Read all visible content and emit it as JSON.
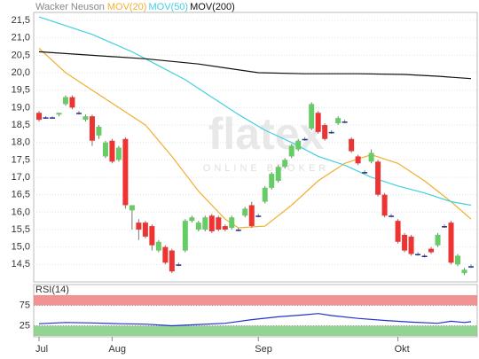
{
  "chart_data": [
    {
      "type": "candlestick",
      "title": "Wacker Neuson",
      "watermark": "flatex",
      "watermark_sub": "ONLINE BROKER",
      "categories": [
        "Jul",
        null,
        null,
        null,
        null,
        null,
        null,
        null,
        null,
        null,
        null,
        "Aug",
        null,
        null,
        null,
        null,
        null,
        null,
        null,
        null,
        null,
        null,
        null,
        null,
        null,
        null,
        null,
        null,
        null,
        null,
        null,
        null,
        null,
        "Sep",
        null,
        null,
        null,
        null,
        null,
        null,
        null,
        null,
        null,
        null,
        null,
        null,
        null,
        null,
        null,
        null,
        null,
        null,
        null,
        null,
        "Okt",
        null,
        null,
        null,
        null,
        null,
        null,
        null,
        null,
        null,
        null,
        null
      ],
      "open": [
        18.85,
        18.72,
        18.72,
        18.8,
        19.1,
        19.3,
        18.85,
        18.65,
        18.75,
        18.2,
        17.6,
        18.05,
        17.5,
        18.1,
        16.05,
        15.7,
        15.7,
        15.6,
        14.9,
        15.0,
        14.9,
        14.5,
        14.9,
        15.75,
        15.5,
        15.5,
        15.9,
        15.85,
        15.6,
        15.55,
        15.5,
        15.9,
        16.2,
        15.9,
        16.3,
        16.7,
        16.9,
        17.3,
        17.6,
        17.8,
        18.1,
        18.4,
        18.85,
        18.5,
        18.3,
        18.55,
        18.6,
        18.1,
        17.6,
        17.15,
        17.45,
        17.45,
        16.5,
        15.9,
        15.75,
        15.35,
        15.3,
        14.8,
        14.75,
        14.95,
        15.05,
        15.6,
        15.7,
        14.5,
        14.25,
        14.45
      ],
      "high": [
        18.9,
        18.75,
        18.75,
        18.85,
        19.35,
        19.35,
        18.9,
        18.8,
        18.8,
        18.5,
        18.05,
        18.1,
        17.9,
        18.15,
        16.2,
        15.8,
        15.75,
        15.65,
        15.2,
        15.05,
        14.95,
        14.55,
        15.8,
        15.9,
        15.75,
        15.9,
        15.95,
        15.9,
        15.65,
        15.9,
        15.55,
        16.15,
        16.3,
        15.95,
        16.75,
        17.15,
        17.35,
        17.55,
        17.95,
        18.1,
        18.15,
        19.15,
        18.9,
        18.55,
        18.35,
        18.75,
        18.65,
        18.15,
        17.65,
        17.2,
        17.8,
        17.5,
        16.55,
        15.95,
        15.8,
        15.4,
        15.35,
        14.85,
        14.8,
        15.0,
        15.4,
        15.65,
        15.75,
        14.8,
        14.4,
        14.5
      ],
      "low": [
        18.6,
        18.68,
        18.68,
        18.75,
        19.05,
        18.95,
        18.8,
        18.6,
        17.9,
        18.1,
        17.55,
        17.4,
        17.45,
        16.1,
        15.5,
        15.2,
        15.25,
        14.9,
        14.85,
        14.5,
        14.25,
        14.45,
        14.85,
        15.7,
        15.45,
        15.45,
        15.4,
        15.45,
        15.45,
        15.5,
        15.45,
        15.85,
        15.55,
        15.85,
        16.25,
        16.65,
        16.85,
        17.25,
        17.55,
        17.75,
        18.05,
        18.35,
        18.25,
        18.05,
        18.25,
        18.5,
        18.55,
        17.7,
        17.35,
        17.1,
        17.4,
        16.45,
        15.85,
        15.85,
        15.1,
        14.85,
        14.75,
        14.75,
        14.7,
        14.8,
        15.0,
        15.55,
        14.5,
        14.45,
        14.2,
        14.4
      ],
      "close": [
        18.65,
        18.72,
        18.72,
        18.85,
        19.3,
        19.0,
        18.85,
        18.75,
        18.05,
        18.45,
        18.0,
        17.45,
        17.85,
        16.2,
        16.2,
        15.5,
        15.3,
        15.05,
        15.15,
        14.55,
        14.3,
        14.5,
        15.75,
        15.85,
        15.7,
        15.85,
        15.45,
        15.5,
        15.5,
        15.85,
        15.5,
        16.1,
        15.6,
        15.9,
        16.7,
        17.1,
        17.3,
        17.5,
        17.9,
        18.05,
        18.1,
        19.1,
        18.3,
        18.1,
        18.3,
        18.7,
        18.6,
        17.75,
        17.4,
        17.15,
        17.7,
        16.5,
        15.9,
        15.9,
        15.15,
        14.9,
        14.8,
        14.8,
        14.75,
        14.85,
        15.35,
        15.6,
        14.55,
        14.75,
        14.35,
        14.45
      ],
      "up_color": "#66cc66",
      "down_color": "#ee3333",
      "series": [
        {
          "name": "MOV(20)",
          "color": "#f0b030",
          "x": [
            0,
            4,
            8,
            12,
            16,
            20,
            24,
            28,
            30,
            34,
            38,
            42,
            46,
            50,
            54,
            58,
            62,
            65
          ],
          "values": [
            20.7,
            20.0,
            19.5,
            19.0,
            18.5,
            17.6,
            16.6,
            15.8,
            15.55,
            15.6,
            16.2,
            16.9,
            17.4,
            17.65,
            17.4,
            16.9,
            16.3,
            15.8
          ]
        },
        {
          "name": "MOV(50)",
          "color": "#40d0e0",
          "x": [
            0,
            4,
            8,
            14,
            18,
            22,
            26,
            30,
            34,
            38,
            42,
            46,
            50,
            54,
            58,
            62,
            65
          ],
          "values": [
            21.6,
            21.35,
            21.1,
            20.6,
            20.2,
            19.8,
            19.3,
            18.8,
            18.35,
            18.0,
            17.6,
            17.35,
            17.0,
            16.75,
            16.55,
            16.3,
            16.2
          ]
        },
        {
          "name": "MOV(200)",
          "color": "#111111",
          "x": [
            0,
            8,
            16,
            24,
            33,
            40,
            48,
            55,
            60,
            65
          ],
          "values": [
            20.6,
            20.5,
            20.4,
            20.25,
            20.0,
            19.97,
            19.97,
            19.95,
            19.9,
            19.83
          ]
        }
      ],
      "ylim": [
        14.0,
        21.73
      ],
      "yticks": [
        {
          "value": 14.5,
          "label": "14,5"
        },
        {
          "value": 15.0,
          "label": "15,0"
        },
        {
          "value": 15.5,
          "label": "15,5"
        },
        {
          "value": 16.0,
          "label": "16,0"
        },
        {
          "value": 16.5,
          "label": "16,5"
        },
        {
          "value": 17.0,
          "label": "17,0"
        },
        {
          "value": 17.5,
          "label": "17,5"
        },
        {
          "value": 18.0,
          "label": "18,0"
        },
        {
          "value": 18.5,
          "label": "18,5"
        },
        {
          "value": 19.0,
          "label": "19,0"
        },
        {
          "value": 19.5,
          "label": "19,5"
        },
        {
          "value": 20.0,
          "label": "20,0"
        },
        {
          "value": 20.5,
          "label": "20,5"
        },
        {
          "value": 21.0,
          "label": "21,0"
        },
        {
          "value": 21.5,
          "label": "21,5"
        }
      ]
    },
    {
      "type": "line",
      "title": "RSI(14)",
      "series": [
        {
          "name": "RSI(14)",
          "color": "#2233cc",
          "x": [
            0,
            4,
            8,
            12,
            16,
            20,
            24,
            28,
            32,
            36,
            40,
            42,
            44,
            48,
            52,
            56,
            60,
            62,
            64,
            65
          ],
          "values": [
            30,
            33,
            32,
            30,
            29,
            25,
            28,
            31,
            40,
            47,
            52,
            55,
            50,
            43,
            38,
            34,
            31,
            36,
            33,
            35
          ]
        }
      ],
      "bands": [
        {
          "from": 75,
          "to": 100,
          "color": "#f08080"
        },
        {
          "from": 0,
          "to": 25,
          "color": "#80cc80"
        }
      ],
      "ylim": [
        0,
        100
      ],
      "yticks": [
        25,
        75
      ]
    }
  ]
}
